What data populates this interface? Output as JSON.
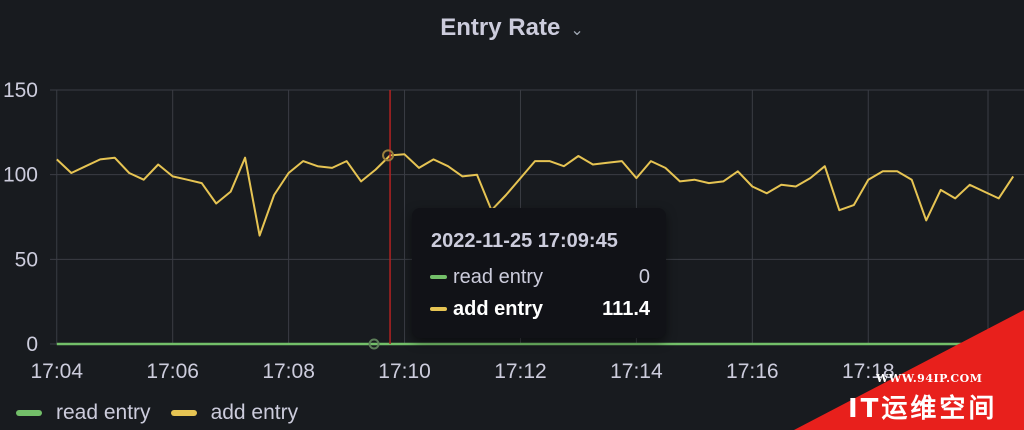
{
  "panel": {
    "title": "Entry Rate",
    "title_caret_icon": "chevron-down-icon"
  },
  "chart_data": {
    "type": "line",
    "x_ticks": [
      "17:04",
      "17:06",
      "17:08",
      "17:10",
      "17:12",
      "17:14",
      "17:16",
      "17:18"
    ],
    "y_ticks": [
      "0",
      "50",
      "100",
      "150"
    ],
    "ylim": [
      0,
      150
    ],
    "xlim": [
      "17:03:53",
      "17:20:35"
    ],
    "grid": true,
    "legend_placement": "bottom-left",
    "series": [
      {
        "name": "read entry",
        "color": "#73bf69",
        "x": [
          "17:04:00",
          "17:20:30"
        ],
        "values": [
          0,
          0
        ]
      },
      {
        "name": "add entry",
        "color": "#e6c453",
        "x": [
          "17:04:00",
          "17:04:15",
          "17:04:30",
          "17:04:45",
          "17:05:00",
          "17:05:15",
          "17:05:30",
          "17:05:45",
          "17:06:00",
          "17:06:15",
          "17:06:30",
          "17:06:45",
          "17:07:00",
          "17:07:15",
          "17:07:30",
          "17:07:45",
          "17:08:00",
          "17:08:15",
          "17:08:30",
          "17:08:45",
          "17:09:00",
          "17:09:15",
          "17:09:30",
          "17:09:45",
          "17:10:00",
          "17:10:15",
          "17:10:30",
          "17:10:45",
          "17:11:00",
          "17:11:15",
          "17:11:30",
          "17:11:45",
          "17:12:00",
          "17:12:15",
          "17:12:30",
          "17:12:45",
          "17:13:00",
          "17:13:15",
          "17:13:30",
          "17:13:45",
          "17:14:00",
          "17:14:15",
          "17:14:30",
          "17:14:45",
          "17:15:00",
          "17:15:15",
          "17:15:30",
          "17:15:45",
          "17:16:00",
          "17:16:15",
          "17:16:30",
          "17:16:45",
          "17:17:00",
          "17:17:15",
          "17:17:30",
          "17:17:45",
          "17:18:00",
          "17:18:15",
          "17:18:30",
          "17:18:45",
          "17:19:00",
          "17:19:15",
          "17:19:30",
          "17:19:45",
          "17:20:00",
          "17:20:15",
          "17:20:30"
        ],
        "values": [
          109,
          101,
          105,
          109,
          110,
          101,
          97,
          106,
          99,
          97,
          95,
          83,
          90,
          110,
          64,
          88,
          101,
          108,
          105,
          104,
          108,
          96,
          103,
          111.4,
          112,
          104,
          109,
          105,
          99,
          100,
          79,
          88,
          98,
          108,
          108,
          105,
          111,
          106,
          107,
          108,
          98,
          108,
          104,
          96,
          97,
          95,
          96,
          102,
          93,
          89,
          94,
          93,
          98,
          105,
          79,
          82,
          97,
          102,
          102,
          97,
          73,
          91,
          86,
          94,
          90,
          86,
          99
        ]
      }
    ],
    "hover": {
      "x": "17:09:45",
      "timestamp": "2022-11-25 17:09:45",
      "rows": [
        {
          "name": "read entry",
          "value": "0",
          "color": "#73bf69"
        },
        {
          "name": "add entry",
          "value": "111.4",
          "color": "#e6c453",
          "highlight": true
        }
      ]
    }
  },
  "legend": {
    "items": [
      {
        "label": "read entry",
        "color": "#73bf69"
      },
      {
        "label": "add entry",
        "color": "#e6c453"
      }
    ]
  },
  "watermark": {
    "url": "WWW.94IP.COM",
    "text": "IT运维空间",
    "color": "#e8201c"
  },
  "colors": {
    "background": "#181b1f",
    "grid": "#3a3d44",
    "crosshair": "#b22222",
    "text": "#ccccdc"
  }
}
